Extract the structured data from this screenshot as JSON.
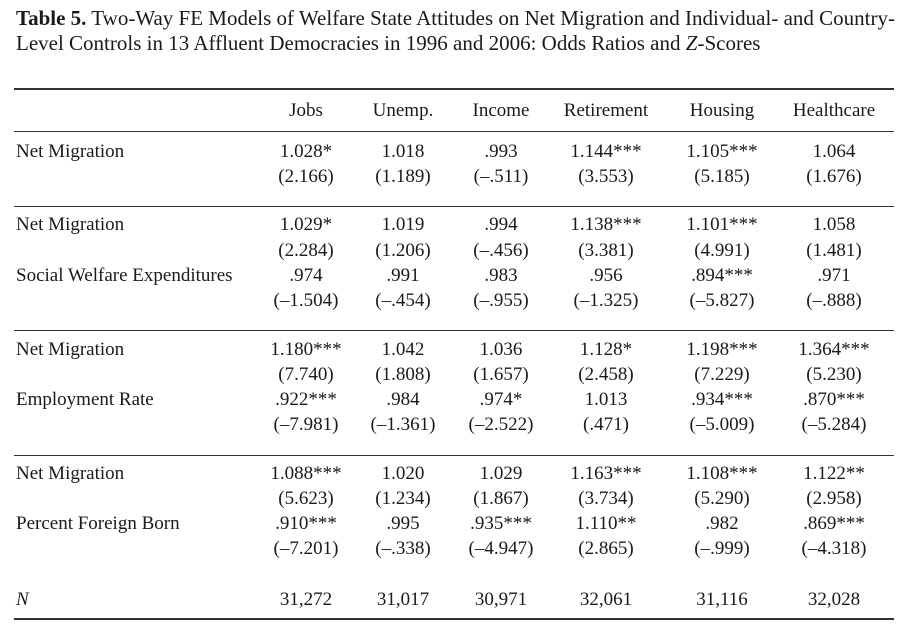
{
  "table": {
    "label": "Table 5.",
    "title_a": " Two-Way FE Models of Welfare State Attitudes on Net Migration and Individual- and Country-Level Controls in 13 Affluent Democracies in 1996 and 2006: Odds Ratios and ",
    "title_italic": "Z",
    "title_b": "-Scores",
    "columns": [
      "Jobs",
      "Unemp.",
      "Income",
      "Retirement",
      "Housing",
      "Healthcare"
    ],
    "rows": [
      {
        "label": "Net Migration",
        "values": [
          "1.028*",
          "1.018",
          ".993",
          "1.144***",
          "1.105***",
          "1.064"
        ]
      },
      {
        "label": "",
        "values": [
          "(2.166)",
          "(1.189)",
          "(–.511)",
          "(3.553)",
          "(5.185)",
          "(1.676)"
        ]
      },
      {
        "label": "Net Migration",
        "values": [
          "1.029*",
          "1.019",
          ".994",
          "1.138***",
          "1.101***",
          "1.058"
        ]
      },
      {
        "label": "",
        "values": [
          "(2.284)",
          "(1.206)",
          "(–.456)",
          "(3.381)",
          "(4.991)",
          "(1.481)"
        ]
      },
      {
        "label": "Social Welfare Expenditures",
        "values": [
          ".974",
          ".991",
          ".983",
          ".956",
          ".894***",
          ".971"
        ]
      },
      {
        "label": "",
        "values": [
          "(–1.504)",
          "(–.454)",
          "(–.955)",
          "(–1.325)",
          "(–5.827)",
          "(–.888)"
        ]
      },
      {
        "label": "Net Migration",
        "values": [
          "1.180***",
          "1.042",
          "1.036",
          "1.128*",
          "1.198***",
          "1.364***"
        ]
      },
      {
        "label": "",
        "values": [
          "(7.740)",
          "(1.808)",
          "(1.657)",
          "(2.458)",
          "(7.229)",
          "(5.230)"
        ]
      },
      {
        "label": "Employment Rate",
        "values": [
          ".922***",
          ".984",
          ".974*",
          "1.013",
          ".934***",
          ".870***"
        ]
      },
      {
        "label": "",
        "values": [
          "(–7.981)",
          "(–1.361)",
          "(–2.522)",
          "(.471)",
          "(–5.009)",
          "(–5.284)"
        ]
      },
      {
        "label": "Net Migration",
        "values": [
          "1.088***",
          "1.020",
          "1.029",
          "1.163***",
          "1.108***",
          "1.122**"
        ]
      },
      {
        "label": "",
        "values": [
          "(5.623)",
          "(1.234)",
          "(1.867)",
          "(3.734)",
          "(5.290)",
          "(2.958)"
        ]
      },
      {
        "label": "Percent Foreign Born",
        "values": [
          ".910***",
          ".995",
          ".935***",
          "1.110**",
          ".982",
          ".869***"
        ]
      },
      {
        "label": "",
        "values": [
          "(–7.201)",
          "(–.338)",
          "(–4.947)",
          "(2.865)",
          "(–.999)",
          "(–4.318)"
        ]
      },
      {
        "label": "N",
        "values": [
          "31,272",
          "31,017",
          "30,971",
          "32,061",
          "31,116",
          "32,028"
        ]
      }
    ]
  }
}
